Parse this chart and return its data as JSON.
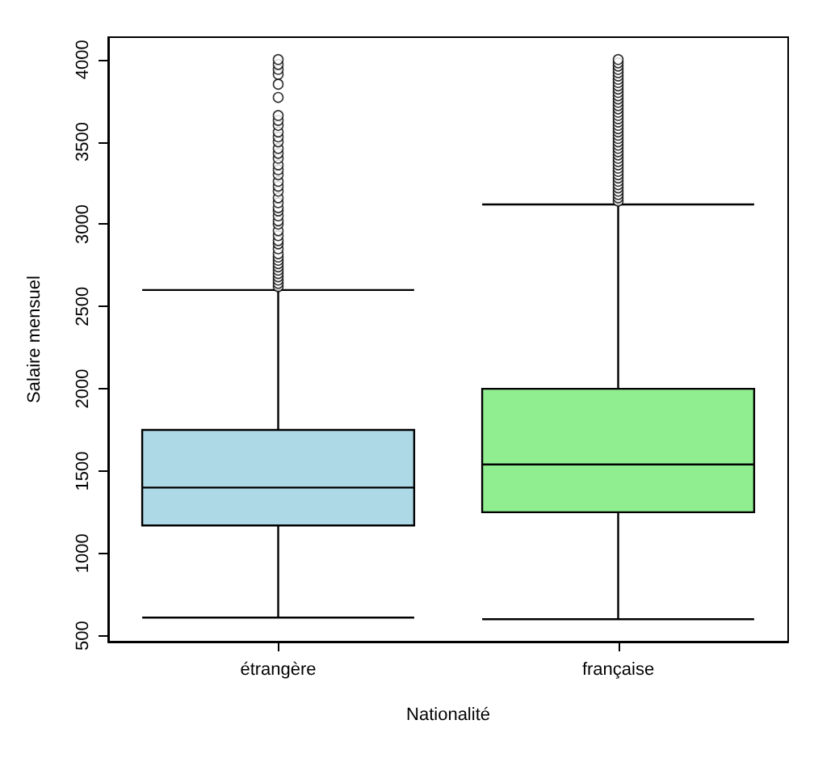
{
  "chart_data": {
    "type": "box",
    "xlabel": "Nationalité",
    "ylabel": "Salaire mensuel",
    "categories": [
      "étrangère",
      "française"
    ],
    "colors": [
      "#add8e6",
      "#90ee90"
    ],
    "boxes": [
      {
        "low": 610,
        "q1": 1170,
        "median": 1400,
        "q3": 1750,
        "high": 2600,
        "outliers": [
          2620,
          2640,
          2660,
          2680,
          2700,
          2720,
          2740,
          2760,
          2780,
          2800,
          2820,
          2850,
          2880,
          2900,
          2930,
          2960,
          3000,
          3020,
          3050,
          3080,
          3100,
          3130,
          3160,
          3200,
          3230,
          3260,
          3300,
          3330,
          3360,
          3400,
          3430,
          3460,
          3500,
          3530,
          3560,
          3600,
          3630,
          3660,
          3770,
          3850,
          3910,
          3940,
          3970,
          4000
        ]
      },
      {
        "low": 600,
        "q1": 1250,
        "median": 1540,
        "q3": 2000,
        "high": 3120,
        "outliers": [
          3140,
          3160,
          3180,
          3200,
          3220,
          3240,
          3260,
          3280,
          3300,
          3320,
          3340,
          3360,
          3380,
          3400,
          3420,
          3440,
          3460,
          3480,
          3500,
          3520,
          3540,
          3560,
          3580,
          3600,
          3620,
          3640,
          3660,
          3680,
          3700,
          3720,
          3740,
          3760,
          3780,
          3800,
          3820,
          3840,
          3860,
          3880,
          3900,
          3920,
          3940,
          3960,
          3980,
          4000
        ]
      }
    ],
    "ylim": [
      464,
      4136
    ],
    "yticks": [
      500,
      1000,
      1500,
      2000,
      2500,
      3000,
      3500,
      4000
    ],
    "grid": false,
    "marker": "circle"
  }
}
